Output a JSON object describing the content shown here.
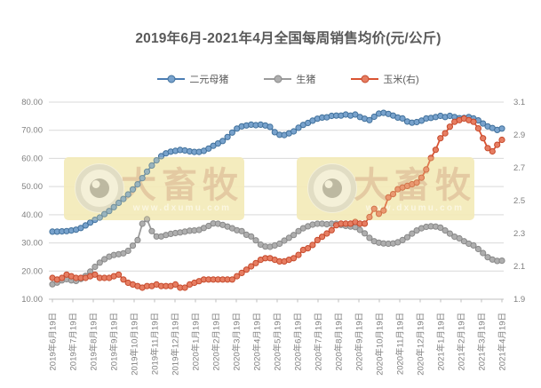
{
  "title": "2019年6月-2021年4月全国每周销售均价(元/公斤)",
  "watermark": {
    "brand": "大畜牧",
    "url": "www.dxumu.com"
  },
  "colors": {
    "title_text": "#595959",
    "axis_text": "#808080",
    "gridline": "#d9d9d9",
    "axis_line": "#bfbfbf",
    "watermark_box": "#f5eec6",
    "sow_blue": "#4b7db3",
    "hog_gray": "#9b9b9b",
    "corn_red": "#da5332"
  },
  "chart_data": {
    "type": "line",
    "title": "2019年6月-2021年4月全国每周销售均价(元/公斤)",
    "legend_position": "top",
    "grid": "horizontal",
    "left_axis": {
      "min": 10,
      "max": 80,
      "ticks": [
        "80.00",
        "70.00",
        "60.00",
        "50.00",
        "40.00",
        "30.00",
        "20.00",
        "10.00"
      ]
    },
    "right_axis": {
      "min": 1.9,
      "max": 3.1,
      "ticks": [
        "3.1",
        "2.9",
        "2.7",
        "2.5",
        "2.3",
        "2.1",
        "1.9"
      ]
    },
    "x_labels": [
      "2019年6月19日",
      "2019年7月19日",
      "2019年8月19日",
      "2019年9月19日",
      "2019年10月19日",
      "2019年11月19日",
      "2019年12月19日",
      "2020年1月19日",
      "2020年2月19日",
      "2020年3月19日",
      "2020年4月19日",
      "2020年5月19日",
      "2020年6月19日",
      "2020年7月19日",
      "2020年8月19日",
      "2020年9月19日",
      "2020年10月19日",
      "2020年11月19日",
      "2020年12月19日",
      "2021年1月19日",
      "2021年2月19日",
      "2021年3月19日",
      "2021年4月19日"
    ],
    "series": [
      {
        "name": "二元母猪",
        "axis": "left",
        "line_color": "#4b7db3",
        "marker_fill": "#78a2cc",
        "marker_stroke": "#41719c",
        "values": [
          34.0,
          34.0,
          34.1,
          34.2,
          34.4,
          34.7,
          35.3,
          36.2,
          37.2,
          38.2,
          39.0,
          40.2,
          41.3,
          42.7,
          44.2,
          45.6,
          47.2,
          49.0,
          50.8,
          53.0,
          55.3,
          57.5,
          59.3,
          60.8,
          61.8,
          62.4,
          62.7,
          63.0,
          62.8,
          62.5,
          62.3,
          62.3,
          62.7,
          63.5,
          64.5,
          65.3,
          66.2,
          67.6,
          69.2,
          70.6,
          71.4,
          71.7,
          72.0,
          71.8,
          72.0,
          71.7,
          71.2,
          69.3,
          68.4,
          68.3,
          68.9,
          69.6,
          70.9,
          71.9,
          72.6,
          73.4,
          74.1,
          74.5,
          74.6,
          75.1,
          75.2,
          75.2,
          75.6,
          75.2,
          75.6,
          74.7,
          74.1,
          73.6,
          74.8,
          75.9,
          76.2,
          75.8,
          75.2,
          74.5,
          74.2,
          73.1,
          72.7,
          72.9,
          73.4,
          74.2,
          74.4,
          74.7,
          75.1,
          74.7,
          75.1,
          74.7,
          74.3,
          74.4,
          74.7,
          74.2,
          73.5,
          72.4,
          71.4,
          70.8,
          70.1,
          70.6
        ]
      },
      {
        "name": "生猪",
        "axis": "left",
        "line_color": "#9b9b9b",
        "marker_fill": "#aeaeae",
        "marker_stroke": "#898989",
        "values": [
          15.3,
          15.9,
          16.7,
          17.1,
          16.7,
          16.5,
          17.2,
          18.3,
          19.8,
          21.5,
          23.0,
          24.2,
          25.1,
          25.7,
          26.0,
          26.3,
          27.2,
          29.0,
          31.0,
          36.8,
          38.4,
          34.2,
          32.3,
          32.3,
          32.8,
          33.2,
          33.5,
          33.7,
          34.0,
          34.3,
          34.4,
          34.6,
          35.3,
          36.0,
          36.9,
          36.8,
          36.4,
          35.8,
          35.2,
          34.5,
          34.2,
          32.9,
          32.3,
          30.9,
          29.4,
          28.7,
          28.6,
          29.1,
          29.7,
          30.8,
          31.8,
          32.8,
          34.2,
          35.2,
          35.9,
          36.5,
          36.8,
          36.8,
          36.6,
          36.8,
          36.8,
          36.4,
          36.0,
          35.8,
          35.6,
          34.6,
          33.4,
          31.8,
          30.6,
          30.1,
          29.8,
          29.7,
          29.8,
          30.2,
          31.0,
          32.0,
          33.3,
          34.4,
          35.2,
          35.7,
          35.9,
          35.8,
          35.4,
          34.4,
          33.3,
          32.2,
          31.6,
          30.6,
          29.7,
          29.1,
          27.8,
          26.4,
          24.9,
          24.1,
          23.6,
          23.7
        ]
      },
      {
        "name": "玉米(右)",
        "axis": "right",
        "line_color": "#da5332",
        "marker_fill": "#e67d62",
        "marker_stroke": "#c64a2c",
        "values": [
          2.03,
          2.02,
          2.03,
          2.05,
          2.04,
          2.03,
          2.03,
          2.03,
          2.04,
          2.05,
          2.03,
          2.03,
          2.03,
          2.04,
          2.05,
          2.02,
          2.0,
          1.99,
          1.98,
          1.97,
          1.98,
          1.98,
          1.99,
          1.98,
          1.98,
          1.98,
          1.99,
          1.97,
          1.97,
          1.99,
          2.0,
          2.01,
          2.02,
          2.02,
          2.02,
          2.02,
          2.02,
          2.02,
          2.02,
          2.04,
          2.06,
          2.08,
          2.1,
          2.12,
          2.14,
          2.15,
          2.15,
          2.14,
          2.13,
          2.13,
          2.14,
          2.15,
          2.17,
          2.2,
          2.21,
          2.23,
          2.26,
          2.28,
          2.3,
          2.32,
          2.35,
          2.36,
          2.36,
          2.36,
          2.37,
          2.36,
          2.36,
          2.4,
          2.45,
          2.42,
          2.44,
          2.52,
          2.54,
          2.57,
          2.58,
          2.59,
          2.6,
          2.61,
          2.64,
          2.69,
          2.76,
          2.81,
          2.88,
          2.91,
          2.95,
          2.98,
          2.99,
          3.0,
          2.99,
          2.98,
          2.94,
          2.88,
          2.82,
          2.8,
          2.84,
          2.87
        ]
      }
    ]
  }
}
